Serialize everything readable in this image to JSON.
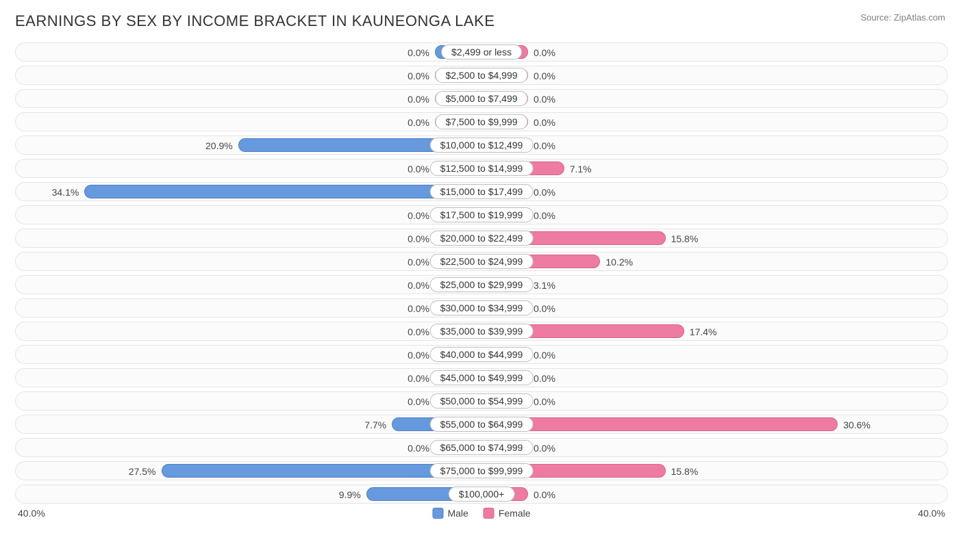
{
  "title": "EARNINGS BY SEX BY INCOME BRACKET IN KAUNEONGA LAKE",
  "source": "Source: ZipAtlas.com",
  "axis_max_pct": 40.0,
  "axis_label_left": "40.0%",
  "axis_label_right": "40.0%",
  "min_bar_pct": 4.0,
  "colors": {
    "male_fill": "#6699dd",
    "male_border": "#4d80c4",
    "female_fill": "#ed7ba2",
    "female_border": "#de5f8b",
    "track_border": "#e4e4e4",
    "track_bg": "#fbfbfb",
    "pill_border": "#bfbfbf",
    "text": "#444444",
    "title_text": "#333333",
    "source_text": "#808080"
  },
  "legend": {
    "male": "Male",
    "female": "Female"
  },
  "rows": [
    {
      "category": "$2,499 or less",
      "male": 0.0,
      "female": 0.0
    },
    {
      "category": "$2,500 to $4,999",
      "male": 0.0,
      "female": 0.0
    },
    {
      "category": "$5,000 to $7,499",
      "male": 0.0,
      "female": 0.0
    },
    {
      "category": "$7,500 to $9,999",
      "male": 0.0,
      "female": 0.0
    },
    {
      "category": "$10,000 to $12,499",
      "male": 20.9,
      "female": 0.0
    },
    {
      "category": "$12,500 to $14,999",
      "male": 0.0,
      "female": 7.1
    },
    {
      "category": "$15,000 to $17,499",
      "male": 34.1,
      "female": 0.0
    },
    {
      "category": "$17,500 to $19,999",
      "male": 0.0,
      "female": 0.0
    },
    {
      "category": "$20,000 to $22,499",
      "male": 0.0,
      "female": 15.8
    },
    {
      "category": "$22,500 to $24,999",
      "male": 0.0,
      "female": 10.2
    },
    {
      "category": "$25,000 to $29,999",
      "male": 0.0,
      "female": 3.1
    },
    {
      "category": "$30,000 to $34,999",
      "male": 0.0,
      "female": 0.0
    },
    {
      "category": "$35,000 to $39,999",
      "male": 0.0,
      "female": 17.4
    },
    {
      "category": "$40,000 to $44,999",
      "male": 0.0,
      "female": 0.0
    },
    {
      "category": "$45,000 to $49,999",
      "male": 0.0,
      "female": 0.0
    },
    {
      "category": "$50,000 to $54,999",
      "male": 0.0,
      "female": 0.0
    },
    {
      "category": "$55,000 to $64,999",
      "male": 7.7,
      "female": 30.6
    },
    {
      "category": "$65,000 to $74,999",
      "male": 0.0,
      "female": 0.0
    },
    {
      "category": "$75,000 to $99,999",
      "male": 27.5,
      "female": 15.8
    },
    {
      "category": "$100,000+",
      "male": 9.9,
      "female": 0.0
    }
  ]
}
